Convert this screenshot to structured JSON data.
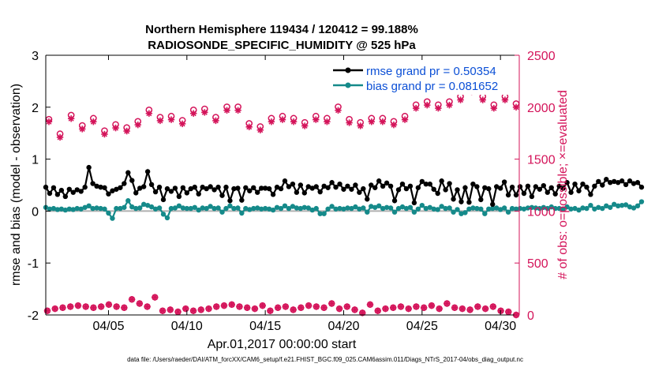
{
  "colors": {
    "rmse": "#000000",
    "bias": "#158a8a",
    "obs": "#d4145a",
    "legend_text": "#0b4fd6",
    "zero_line": "#b0b0b0"
  },
  "chart_data": {
    "type": "line",
    "title_line1": "Northern Hemisphere 119434 / 120412 = 99.188%",
    "title_line2": "RADIOSONDE_SPECIFIC_HUMIDITY @ 525 hPa",
    "xlabel": "Apr.01,2017 00:00:00 start",
    "ylabel_left": "rmse and bias (model - observation)",
    "ylabel_right": "# of obs: o=possible; ×=evaluated",
    "xlim": [
      1,
      31.2
    ],
    "ylim_left": [
      -2,
      3
    ],
    "ylim_right": [
      0,
      2500
    ],
    "x_ticks": [
      {
        "value": 5,
        "label": "04/05"
      },
      {
        "value": 10,
        "label": "04/10"
      },
      {
        "value": 15,
        "label": "04/15"
      },
      {
        "value": 20,
        "label": "04/20"
      },
      {
        "value": 25,
        "label": "04/25"
      },
      {
        "value": 30,
        "label": "04/30"
      }
    ],
    "y_ticks_left": [
      {
        "value": 3,
        "label": "3"
      },
      {
        "value": 2,
        "label": "2"
      },
      {
        "value": 1,
        "label": "1"
      },
      {
        "value": 0,
        "label": "0"
      },
      {
        "value": -1,
        "label": "-1"
      },
      {
        "value": -2,
        "label": "-2"
      }
    ],
    "y_ticks_right": [
      {
        "value": 2500,
        "label": "2500"
      },
      {
        "value": 2000,
        "label": "2000"
      },
      {
        "value": 1500,
        "label": "1500"
      },
      {
        "value": 1000,
        "label": "1000"
      },
      {
        "value": 500,
        "label": "500"
      },
      {
        "value": 0,
        "label": "0"
      }
    ],
    "legend": {
      "position": "top-right",
      "entries": [
        "rmse grand pr = 0.50354",
        "bias grand pr = 0.081652"
      ]
    },
    "footer": "data file: /Users/raeder/DAI/ATM_forcXX/CAM6_setup/f.e21.FHIST_BGC.f09_025.CAM6assim.011/Diags_NTrS_2017-04/obs_diag_output.nc",
    "x_start": 1,
    "x_step": 0.25,
    "series": [
      {
        "name": "rmse",
        "axis": "left",
        "values": [
          0.46,
          0.34,
          0.45,
          0.32,
          0.4,
          0.28,
          0.42,
          0.36,
          0.41,
          0.38,
          0.46,
          0.84,
          0.53,
          0.48,
          0.46,
          0.45,
          0.33,
          0.39,
          0.42,
          0.45,
          0.53,
          0.74,
          0.59,
          0.35,
          0.44,
          0.47,
          0.76,
          0.51,
          0.37,
          0.46,
          0.22,
          0.43,
          0.38,
          0.44,
          0.28,
          0.45,
          0.35,
          0.43,
          0.46,
          0.33,
          0.46,
          0.43,
          0.47,
          0.41,
          0.46,
          0.3,
          0.46,
          0.2,
          0.43,
          0.44,
          0.21,
          0.45,
          0.39,
          0.45,
          0.36,
          0.44,
          0.44,
          0.43,
          0.32,
          0.46,
          0.43,
          0.58,
          0.47,
          0.52,
          0.36,
          0.5,
          0.35,
          0.47,
          0.44,
          0.47,
          0.37,
          0.48,
          0.45,
          0.55,
          0.46,
          0.52,
          0.42,
          0.48,
          0.42,
          0.5,
          0.36,
          0.43,
          0.23,
          0.5,
          0.45,
          0.58,
          0.48,
          0.54,
          0.48,
          0.2,
          0.41,
          0.52,
          0.43,
          0.48,
          0.16,
          0.45,
          0.57,
          0.52,
          0.52,
          0.42,
          0.34,
          0.58,
          0.41,
          0.53,
          0.23,
          0.41,
          0.18,
          0.45,
          0.17,
          0.52,
          0.47,
          0.22,
          0.45,
          0.43,
          0.13,
          0.47,
          0.44,
          0.56,
          0.31,
          0.46,
          0.31,
          0.47,
          0.34,
          0.48,
          0.28,
          0.47,
          0.42,
          0.49,
          0.36,
          0.45,
          0.33,
          0.48,
          0.44,
          0.55,
          0.36,
          0.52,
          0.39,
          0.52,
          0.46,
          0.32,
          0.48,
          0.57,
          0.5,
          0.61,
          0.55,
          0.57,
          0.55,
          0.58,
          0.51,
          0.58,
          0.53,
          0.55,
          0.46
        ]
      },
      {
        "name": "bias",
        "axis": "left",
        "values": [
          0.07,
          0.04,
          0.05,
          0.03,
          0.04,
          0.02,
          0.04,
          0.03,
          0.05,
          0.04,
          0.07,
          0.1,
          0.05,
          0.06,
          0.05,
          0.04,
          -0.04,
          -0.14,
          0.05,
          0.05,
          0.07,
          0.2,
          0.08,
          0.05,
          0.06,
          0.13,
          0.11,
          0.08,
          0.04,
          0.06,
          -0.06,
          -0.13,
          0.05,
          0.06,
          0.1,
          0.06,
          0.05,
          0.05,
          0.07,
          0.02,
          0.06,
          0.05,
          0.09,
          0.05,
          0.06,
          -0.02,
          0.05,
          0.1,
          0.05,
          0.06,
          -0.04,
          0.05,
          0.03,
          0.05,
          0.06,
          0.04,
          0.05,
          0.04,
          0.02,
          0.07,
          0.05,
          0.1,
          0.05,
          0.09,
          0.06,
          0.05,
          0.07,
          0.06,
          0.02,
          0.05,
          -0.05,
          -0.05,
          0.04,
          0.09,
          0.04,
          0.05,
          0.04,
          0.06,
          0.05,
          0.08,
          0.04,
          0.06,
          -0.02,
          0.09,
          0.07,
          0.1,
          0.05,
          0.07,
          0.06,
          -0.02,
          0.05,
          0.08,
          0.05,
          0.07,
          -0.02,
          0.04,
          0.11,
          0.05,
          0.07,
          0.04,
          0.03,
          0.09,
          0.05,
          0.06,
          -0.02,
          0.03,
          -0.05,
          -0.03,
          0.04,
          0.06,
          0.05,
          0.04,
          -0.05,
          0.04,
          0.05,
          0.06,
          0.03,
          0.06,
          -0.02,
          0.05,
          0.04,
          0.05,
          0.04,
          0.06,
          0.07,
          0.06,
          0.05,
          0.07,
          0.05,
          0.08,
          0.05,
          0.05,
          0.04,
          0.08,
          0.04,
          0.05,
          0.02,
          0.06,
          0.05,
          0.11,
          0.04,
          0.07,
          0.05,
          0.1,
          0.07,
          0.13,
          0.1,
          0.11,
          0.12,
          0.08,
          0.06,
          0.1,
          0.18
        ]
      },
      {
        "name": "obs_possible",
        "axis": "right",
        "values": [
          1860,
          1720,
          1900,
          1800,
          1870,
          1750,
          1810,
          1780,
          1840,
          1950,
          1880,
          1890,
          1850,
          1950,
          1960,
          1880,
          1980,
          1980,
          1820,
          1790,
          1870,
          1890,
          1870,
          1830,
          1890,
          1870,
          1980,
          1860,
          1830,
          1870,
          1870,
          1840,
          1890,
          2000,
          2030,
          2000,
          2030,
          2080,
          2160,
          2080,
          2000,
          2080,
          2010
        ]
      },
      {
        "name": "obs_evaluated",
        "axis": "right",
        "values": [
          1860,
          1710,
          1890,
          1790,
          1860,
          1740,
          1800,
          1770,
          1830,
          1940,
          1870,
          1880,
          1840,
          1940,
          1950,
          1870,
          1970,
          1970,
          1810,
          1780,
          1860,
          1880,
          1860,
          1820,
          1880,
          1860,
          1970,
          1850,
          1820,
          1860,
          1860,
          1830,
          1880,
          1990,
          2020,
          1990,
          2020,
          2070,
          2150,
          2070,
          1990,
          2070,
          2000
        ]
      },
      {
        "name": "obs_bottom",
        "axis": "right",
        "values": [
          40,
          60,
          70,
          80,
          90,
          80,
          70,
          80,
          100,
          80,
          70,
          150,
          110,
          80,
          170,
          40,
          50,
          30,
          60,
          40,
          50,
          60,
          80,
          90,
          100,
          80,
          70,
          60,
          90,
          40,
          70,
          80,
          50,
          70,
          90,
          80,
          70,
          110,
          60,
          80,
          50,
          20,
          100,
          40,
          60,
          70,
          80,
          60,
          80,
          70,
          90,
          60,
          110,
          70,
          60,
          50,
          80,
          60,
          80,
          40,
          30,
          0
        ]
      }
    ]
  }
}
